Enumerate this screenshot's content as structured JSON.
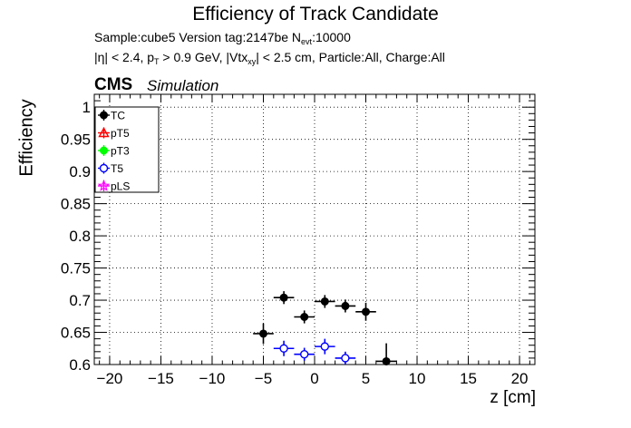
{
  "header": {
    "title": "Efficiency of Track Candidate",
    "line1_pre": "Sample:cube5   Version tag:2147be  N",
    "line1_sub": "evt",
    "line1_post": ":10000",
    "line2_a": "|η| < 2.4, p",
    "line2_sub1": "T",
    "line2_b": " > 0.9 GeV, |Vtx",
    "line2_sub2": "xy",
    "line2_c": "| < 2.5 cm, Particle:All, Charge:All",
    "cms": "CMS",
    "simulation": "Simulation"
  },
  "chart_data": {
    "type": "scatter",
    "title": "Efficiency of Track Candidate",
    "xlabel": "z [cm]",
    "ylabel": "Efficiency",
    "xlim": [
      -21.5,
      21.5
    ],
    "ylim": [
      0.6,
      1.02
    ],
    "grid": true,
    "legend_position": "top-left",
    "x_ticks": [
      -20,
      -15,
      -10,
      -5,
      0,
      5,
      10,
      15,
      20
    ],
    "x_tick_labels": [
      "−20",
      "−15",
      "−10",
      "−5",
      "0",
      "5",
      "10",
      "15",
      "20"
    ],
    "y_ticks": [
      0.6,
      0.65,
      0.7,
      0.75,
      0.8,
      0.85,
      0.9,
      0.95,
      1
    ],
    "y_tick_labels": [
      "0.6",
      "0.65",
      "0.7",
      "0.75",
      "0.8",
      "0.85",
      "0.9",
      "0.95",
      "1"
    ],
    "series": [
      {
        "name": "TC",
        "color": "#000000",
        "marker": "filled-circle",
        "points": [
          {
            "x": -5,
            "y": 0.648,
            "xerr": 1,
            "yerr": 0.016
          },
          {
            "x": -3,
            "y": 0.704,
            "xerr": 1,
            "yerr": 0.01
          },
          {
            "x": -1,
            "y": 0.674,
            "xerr": 1,
            "yerr": 0.01
          },
          {
            "x": 1,
            "y": 0.698,
            "xerr": 1,
            "yerr": 0.01
          },
          {
            "x": 3,
            "y": 0.691,
            "xerr": 1,
            "yerr": 0.01
          },
          {
            "x": 5,
            "y": 0.682,
            "xerr": 1,
            "yerr": 0.014
          },
          {
            "x": 7,
            "y": 0.605,
            "xerr": 1,
            "yerr": 0.028
          }
        ]
      },
      {
        "name": "pT5",
        "color": "#ff0000",
        "marker": "open-triangle",
        "points": []
      },
      {
        "name": "pT3",
        "color": "#00ff00",
        "marker": "filled-circle",
        "points": []
      },
      {
        "name": "T5",
        "color": "#0000ff",
        "marker": "open-circle",
        "points": [
          {
            "x": -3,
            "y": 0.625,
            "xerr": 1,
            "yerr": 0.012
          },
          {
            "x": -1,
            "y": 0.616,
            "xerr": 1,
            "yerr": 0.01
          },
          {
            "x": 1,
            "y": 0.628,
            "xerr": 1,
            "yerr": 0.012
          },
          {
            "x": 3,
            "y": 0.61,
            "xerr": 1,
            "yerr": 0.01
          }
        ]
      },
      {
        "name": "pLS",
        "color": "#ff00ff",
        "marker": "open-star",
        "points": []
      }
    ]
  }
}
